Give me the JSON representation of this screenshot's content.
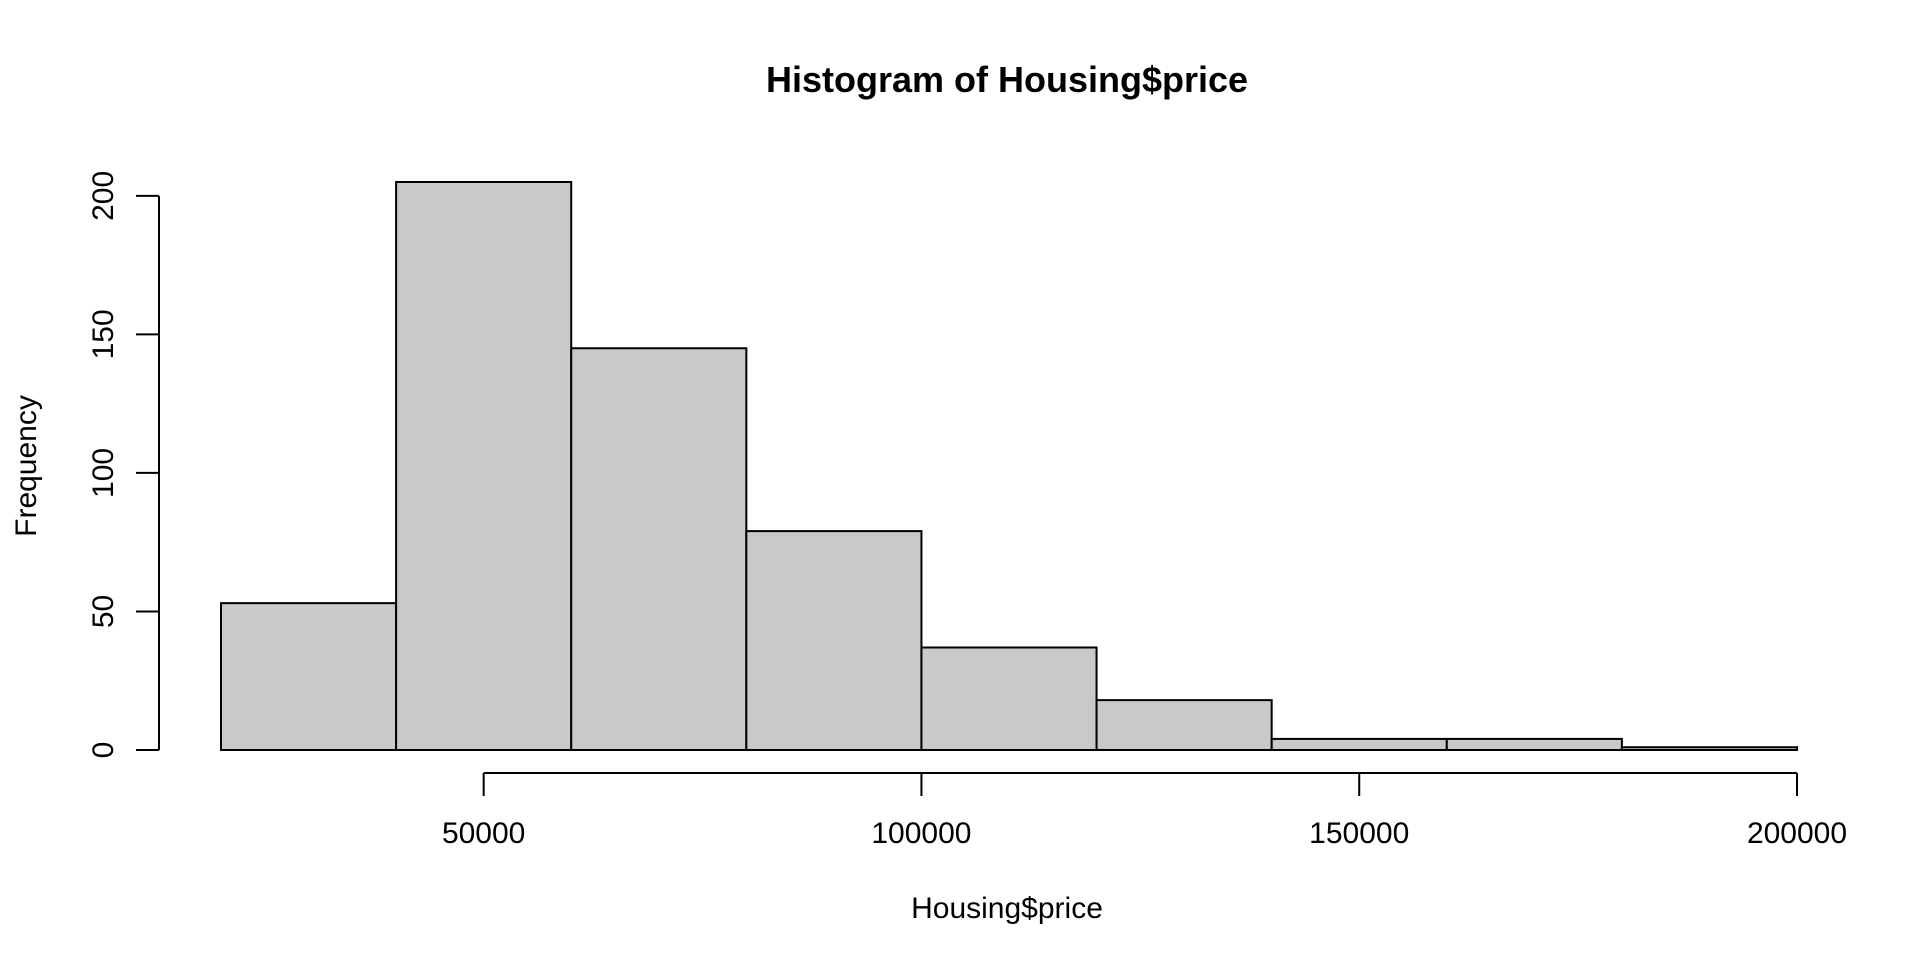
{
  "chart_data": {
    "type": "bar",
    "title": "Histogram of Housing$price",
    "xlabel": "Housing$price",
    "ylabel": "Frequency",
    "bins": [
      {
        "start": 20000,
        "end": 40000,
        "count": 53
      },
      {
        "start": 40000,
        "end": 60000,
        "count": 205
      },
      {
        "start": 60000,
        "end": 80000,
        "count": 145
      },
      {
        "start": 80000,
        "end": 100000,
        "count": 79
      },
      {
        "start": 100000,
        "end": 120000,
        "count": 37
      },
      {
        "start": 120000,
        "end": 140000,
        "count": 18
      },
      {
        "start": 140000,
        "end": 160000,
        "count": 4
      },
      {
        "start": 160000,
        "end": 180000,
        "count": 4
      },
      {
        "start": 180000,
        "end": 200000,
        "count": 1
      }
    ],
    "xlim": [
      20000,
      200000
    ],
    "ylim": [
      0,
      205
    ],
    "xticks": [
      50000,
      100000,
      150000,
      200000
    ],
    "yticks": [
      0,
      50,
      100,
      150,
      200
    ],
    "xtick_labels": [
      "50000",
      "100000",
      "150000",
      "200000"
    ],
    "ytick_labels": [
      "0",
      "50",
      "100",
      "150",
      "200"
    ],
    "grid": false,
    "legend": "none",
    "colors": {
      "bar_fill": "#c9c9c9",
      "bar_stroke": "#000000",
      "background": "#ffffff"
    }
  }
}
